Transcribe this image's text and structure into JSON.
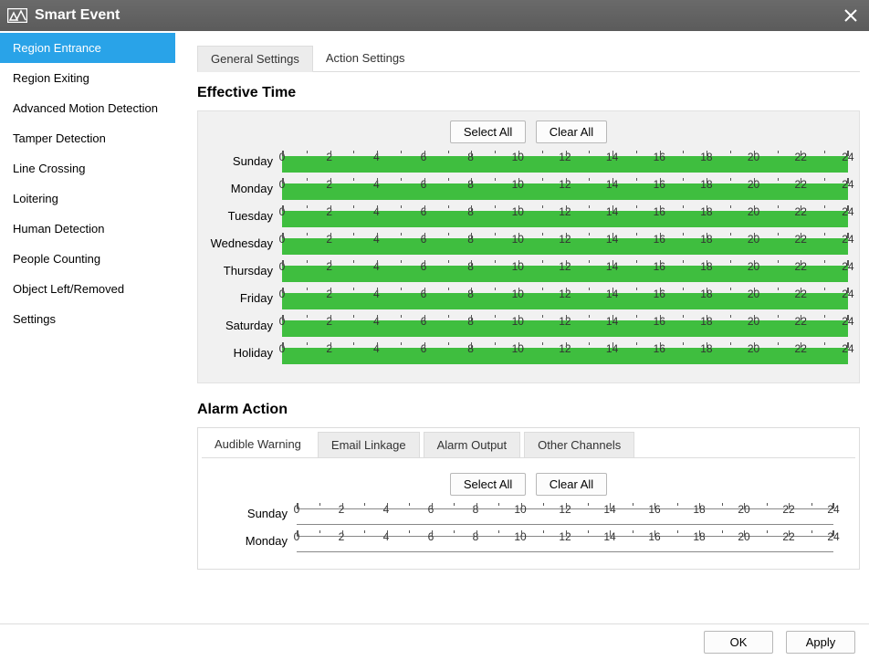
{
  "window": {
    "title": "Smart Event"
  },
  "sidebar": {
    "items": [
      {
        "label": "Region Entrance",
        "active": true
      },
      {
        "label": "Region Exiting",
        "active": false
      },
      {
        "label": "Advanced Motion Detection",
        "active": false
      },
      {
        "label": "Tamper Detection",
        "active": false
      },
      {
        "label": "Line Crossing",
        "active": false
      },
      {
        "label": "Loitering",
        "active": false
      },
      {
        "label": "Human Detection",
        "active": false
      },
      {
        "label": "People Counting",
        "active": false
      },
      {
        "label": "Object Left/Removed",
        "active": false
      },
      {
        "label": "Settings",
        "active": false
      }
    ]
  },
  "tabs": [
    {
      "label": "General Settings",
      "active": true
    },
    {
      "label": "Action Settings",
      "active": false
    }
  ],
  "effective_time": {
    "title": "Effective Time",
    "select_all": "Select All",
    "clear_all": "Clear All",
    "hours": [
      0,
      2,
      4,
      6,
      8,
      10,
      12,
      14,
      16,
      18,
      20,
      22,
      24
    ],
    "days": [
      "Sunday",
      "Monday",
      "Tuesday",
      "Wednesday",
      "Thursday",
      "Friday",
      "Saturday",
      "Holiday"
    ],
    "bar_color": "#3fbe3f",
    "bar_fill": true
  },
  "alarm_action": {
    "title": "Alarm Action",
    "tabs": [
      {
        "label": "Audible Warning",
        "active": true
      },
      {
        "label": "Email Linkage",
        "active": false
      },
      {
        "label": "Alarm Output",
        "active": false
      },
      {
        "label": "Other Channels",
        "active": false
      }
    ],
    "select_all": "Select All",
    "clear_all": "Clear All",
    "hours": [
      0,
      2,
      4,
      6,
      8,
      10,
      12,
      14,
      16,
      18,
      20,
      22,
      24
    ],
    "days": [
      "Sunday",
      "Monday"
    ],
    "bar_fill": false
  },
  "footer": {
    "ok": "OK",
    "apply": "Apply"
  }
}
